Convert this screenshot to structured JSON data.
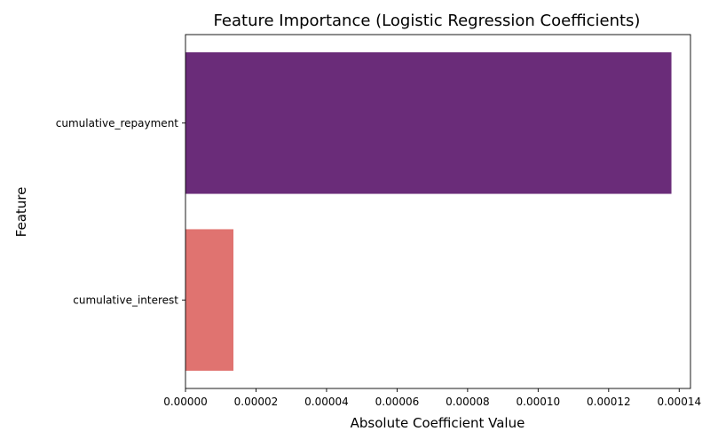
{
  "chart_data": {
    "type": "bar",
    "orientation": "horizontal",
    "title": "Feature Importance (Logistic Regression Coefficients)",
    "xlabel": "Absolute Coefficient Value",
    "ylabel": "Feature",
    "categories": [
      "cumulative_repayment",
      "cumulative_interest"
    ],
    "values": [
      0.0001378,
      1.36e-05
    ],
    "colors": [
      "#6a2c79",
      "#e07370"
    ],
    "xlim": [
      0,
      0.0001432
    ],
    "xticks": [
      0,
      2e-05,
      4e-05,
      6e-05,
      8e-05,
      0.0001,
      0.00012,
      0.00014
    ],
    "xtick_labels": [
      "0.00000",
      "0.00002",
      "0.00004",
      "0.00006",
      "0.00008",
      "0.00010",
      "0.00012",
      "0.00014"
    ],
    "grid": false,
    "legend": "none"
  }
}
